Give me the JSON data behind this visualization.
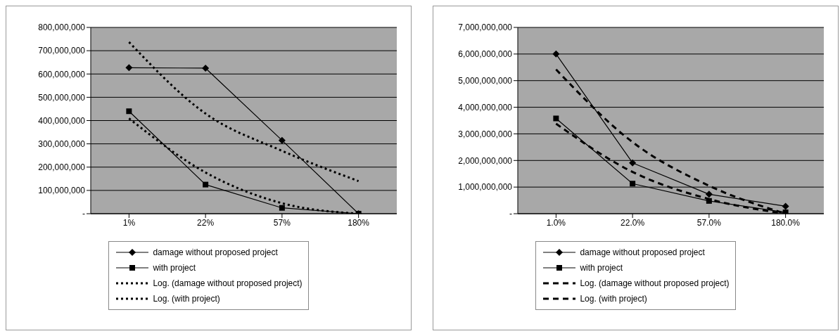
{
  "chart_data": [
    {
      "type": "line",
      "categories": [
        "1%",
        "22%",
        "57%",
        "180%"
      ],
      "series": [
        {
          "name": "damage without proposed project",
          "color": "#000000",
          "marker": "diamond",
          "line_style": "solid",
          "values": [
            627000000,
            625000000,
            315000000,
            0
          ]
        },
        {
          "name": "with project",
          "color": "#000000",
          "marker": "square",
          "line_style": "solid",
          "values": [
            440000000,
            125000000,
            25000000,
            0
          ]
        },
        {
          "name": "Log. (damage without proposed project)",
          "color": "#000000",
          "marker": "none",
          "line_style": "dotted",
          "values": [
            737000000,
            430000000,
            270000000,
            140000000
          ]
        },
        {
          "name": "Log. (with project)",
          "color": "#000000",
          "marker": "none",
          "line_style": "dotted",
          "values": [
            409000000,
            177000000,
            45000000,
            0
          ]
        }
      ],
      "ylim": [
        0,
        800000000
      ],
      "yticks": [
        {
          "value": 0,
          "label": "-"
        },
        {
          "value": 100000000,
          "label": "100,000,000"
        },
        {
          "value": 200000000,
          "label": "200,000,000"
        },
        {
          "value": 300000000,
          "label": "300,000,000"
        },
        {
          "value": 400000000,
          "label": "400,000,000"
        },
        {
          "value": 500000000,
          "label": "500,000,000"
        },
        {
          "value": 600000000,
          "label": "600,000,000"
        },
        {
          "value": 700000000,
          "label": "700,000,000"
        },
        {
          "value": 800000000,
          "label": "800,000,000"
        }
      ],
      "grid": "y",
      "legend": "bottom"
    },
    {
      "type": "line",
      "categories": [
        "1.0%",
        "22.0%",
        "57.0%",
        "180.0%"
      ],
      "series": [
        {
          "name": "damage without proposed project",
          "color": "#000000",
          "marker": "diamond",
          "line_style": "solid",
          "values": [
            6000000000,
            1910000000,
            730000000,
            280000000
          ]
        },
        {
          "name": "with project",
          "color": "#000000",
          "marker": "square",
          "line_style": "solid",
          "values": [
            3580000000,
            1130000000,
            480000000,
            50000000
          ]
        },
        {
          "name": "Log. (damage without proposed project)",
          "color": "#000000",
          "marker": "none",
          "line_style": "dashed",
          "values": [
            5420000000,
            2690000000,
            1050000000,
            0
          ]
        },
        {
          "name": "Log. (with project)",
          "color": "#000000",
          "marker": "none",
          "line_style": "dashed",
          "values": [
            3380000000,
            1570000000,
            550000000,
            0
          ]
        }
      ],
      "ylim": [
        0,
        7000000000
      ],
      "yticks": [
        {
          "value": 0,
          "label": "-"
        },
        {
          "value": 1000000000,
          "label": "1,000,000,000"
        },
        {
          "value": 2000000000,
          "label": "2,000,000,000"
        },
        {
          "value": 3000000000,
          "label": "3,000,000,000"
        },
        {
          "value": 4000000000,
          "label": "4,000,000,000"
        },
        {
          "value": 5000000000,
          "label": "5,000,000,000"
        },
        {
          "value": 6000000000,
          "label": "6,000,000,000"
        },
        {
          "value": 7000000000,
          "label": "7,000,000,000"
        }
      ],
      "grid": "y",
      "legend": "bottom"
    }
  ]
}
